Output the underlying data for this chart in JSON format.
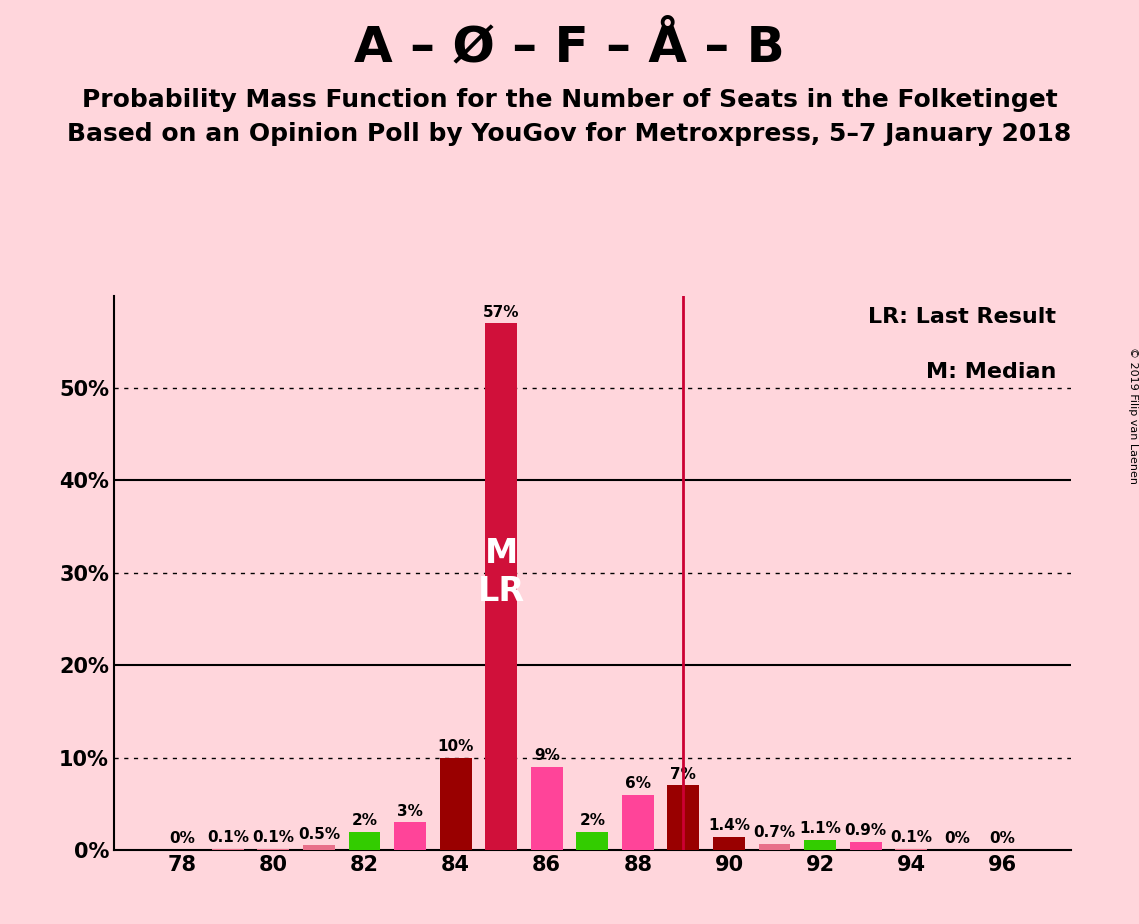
{
  "title_main": "A – Ø – F – Å – B",
  "subtitle1": "Probability Mass Function for the Number of Seats in the Folketinget",
  "subtitle2": "Based on an Opinion Poll by YouGov for Metroxpress, 5–7 January 2018",
  "copyright": "© 2019 Filip van Laenen",
  "background_color": "#FFD6DC",
  "legend_text1": "LR: Last Result",
  "legend_text2": "M: Median",
  "median_seat": 85,
  "last_result_seat": 85,
  "vertical_line_seat": 89,
  "seats": [
    78,
    79,
    80,
    81,
    82,
    83,
    84,
    85,
    86,
    87,
    88,
    89,
    90,
    91,
    92,
    93,
    94,
    95,
    96
  ],
  "values": [
    0.0,
    0.1,
    0.1,
    0.5,
    2.0,
    3.0,
    10.0,
    57.0,
    9.0,
    2.0,
    6.0,
    7.0,
    1.4,
    0.7,
    1.1,
    0.9,
    0.1,
    0.0,
    0.0
  ],
  "colors": [
    "#E8708A",
    "#E8708A",
    "#E8708A",
    "#E8708A",
    "#33CC00",
    "#FF4499",
    "#990000",
    "#D0103A",
    "#FF4499",
    "#33CC00",
    "#FF4499",
    "#990000",
    "#990000",
    "#E8708A",
    "#33CC00",
    "#FF4499",
    "#E8708A",
    "#E8708A",
    "#E8708A"
  ],
  "bar_width": 0.7,
  "ylim_max": 60,
  "ytick_positions": [
    0,
    10,
    20,
    30,
    40,
    50
  ],
  "ytick_labels": [
    "0%",
    "10%",
    "20%",
    "30%",
    "40%",
    "50%"
  ],
  "dotted_gridlines": [
    10,
    30,
    50
  ],
  "solid_gridlines": [
    20,
    40
  ],
  "title_fontsize": 36,
  "subtitle_fontsize": 18,
  "legend_fontsize": 16,
  "bar_label_fontsize": 11,
  "tick_fontsize": 15,
  "ml_fontsize": 24
}
